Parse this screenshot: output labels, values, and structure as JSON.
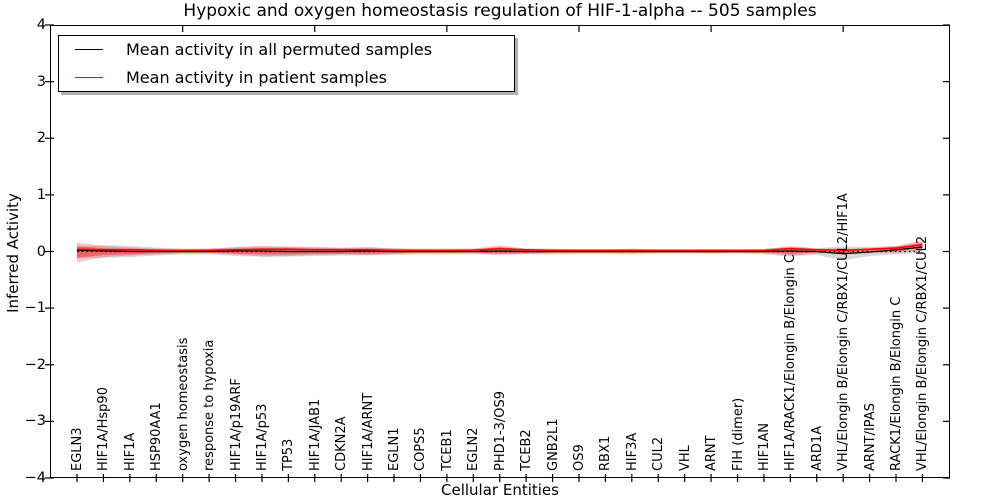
{
  "title": "Hypoxic and oxygen homeostasis regulation of HIF-1-alpha -- 505 samples",
  "axes": {
    "ylabel": "Inferred Activity",
    "xlabel": "Cellular Entities",
    "ytick_labels": [
      "4",
      "3",
      "2",
      "1",
      "0",
      "−1",
      "−2",
      "−3",
      "−4"
    ]
  },
  "legend": {
    "items": [
      {
        "label": "Mean activity in all permuted samples",
        "color": "#000000"
      },
      {
        "label": "Mean activity in patient samples",
        "color": "#ff0000"
      }
    ]
  },
  "chart_data": {
    "type": "line",
    "title": "Hypoxic and oxygen homeostasis regulation of HIF-1-alpha -- 505 samples",
    "xlabel": "Cellular Entities",
    "ylabel": "Inferred Activity",
    "ylim": [
      -4,
      4
    ],
    "yticks": [
      4,
      3,
      2,
      1,
      0,
      -1,
      -2,
      -3,
      -4
    ],
    "top_tick_indices": [
      4,
      9,
      14,
      19,
      24,
      29
    ],
    "grid": false,
    "legend_position": "upper left",
    "categories": [
      "EGLN3",
      "HIF1A/Hsp90",
      "HIF1A",
      "HSP90AA1",
      "oxygen homeostasis",
      "response to hypoxia",
      "HIF1A/p19ARF",
      "HIF1A/p53",
      "TP53",
      "HIF1A/JAB1",
      "CDKN2A",
      "HIF1A/ARNT",
      "EGLN1",
      "COPS5",
      "TCEB1",
      "EGLN2",
      "PHD1-3/OS9",
      "TCEB2",
      "GNB2L1",
      "OS9",
      "RBX1",
      "HIF3A",
      "CUL2",
      "VHL",
      "ARNT",
      "FIH (dimer)",
      "HIF1AN",
      "HIF1A/RACK1/Elongin B/Elongin C",
      "ARD1A",
      "VHL/Elongin B/Elongin C/RBX1/CUL2/HIF1A",
      "ARNT/IPAS",
      "RACK1/Elongin B/Elongin C",
      "VHL/Elongin B/Elongin C/RBX1/CUL2"
    ],
    "series": [
      {
        "name": "Mean activity in all permuted samples",
        "color": "#000000",
        "values": [
          0.02,
          0.01,
          0.0,
          0.0,
          0.0,
          0.0,
          0.01,
          0.01,
          0.0,
          0.0,
          0.0,
          0.01,
          0.0,
          0.0,
          0.0,
          0.0,
          0.01,
          0.0,
          0.0,
          0.0,
          0.0,
          0.0,
          0.0,
          0.0,
          0.0,
          0.0,
          0.0,
          0.01,
          0.0,
          -0.04,
          -0.01,
          0.03,
          0.08
        ]
      },
      {
        "name": "Mean activity in patient samples",
        "color": "#ff0000",
        "values": [
          0.04,
          0.03,
          0.03,
          0.02,
          0.02,
          0.02,
          0.03,
          0.04,
          0.04,
          0.03,
          0.03,
          0.03,
          0.02,
          0.02,
          0.02,
          0.02,
          0.05,
          0.03,
          0.02,
          0.02,
          0.02,
          0.02,
          0.02,
          0.02,
          0.02,
          0.02,
          0.02,
          0.05,
          0.03,
          0.02,
          0.04,
          0.06,
          0.12
        ]
      }
    ],
    "bands": [
      {
        "name": "permuted-activity-range",
        "color": "#999999",
        "opacity": 0.38,
        "upper": [
          0.1,
          0.11,
          0.1,
          0.07,
          0.05,
          0.05,
          0.08,
          0.09,
          0.09,
          0.08,
          0.07,
          0.07,
          0.06,
          0.05,
          0.05,
          0.05,
          0.05,
          0.05,
          0.05,
          0.04,
          0.04,
          0.05,
          0.04,
          0.04,
          0.04,
          0.04,
          0.05,
          0.08,
          0.06,
          0.09,
          0.08,
          0.09,
          0.14
        ],
        "lower": [
          -0.12,
          -0.11,
          -0.1,
          -0.07,
          -0.05,
          -0.05,
          -0.08,
          -0.09,
          -0.09,
          -0.08,
          -0.07,
          -0.07,
          -0.06,
          -0.05,
          -0.05,
          -0.05,
          -0.05,
          -0.05,
          -0.05,
          -0.04,
          -0.04,
          -0.05,
          -0.04,
          -0.04,
          -0.04,
          -0.04,
          -0.05,
          -0.09,
          -0.06,
          -0.16,
          -0.08,
          -0.05,
          -0.02
        ]
      },
      {
        "name": "patient-activity-range-outer",
        "color": "#ff0000",
        "opacity": 0.22,
        "upper": [
          0.16,
          0.1,
          0.07,
          0.05,
          0.04,
          0.05,
          0.07,
          0.1,
          0.08,
          0.07,
          0.06,
          0.08,
          0.05,
          0.04,
          0.04,
          0.05,
          0.11,
          0.05,
          0.04,
          0.04,
          0.04,
          0.04,
          0.03,
          0.03,
          0.04,
          0.03,
          0.04,
          0.1,
          0.05,
          0.05,
          0.06,
          0.1,
          0.2
        ],
        "lower": [
          -0.19,
          -0.1,
          -0.07,
          -0.05,
          -0.03,
          -0.03,
          -0.05,
          -0.09,
          -0.08,
          -0.06,
          -0.05,
          -0.06,
          -0.04,
          -0.03,
          -0.03,
          -0.03,
          -0.06,
          -0.04,
          -0.03,
          -0.03,
          -0.03,
          -0.03,
          -0.02,
          -0.02,
          -0.03,
          -0.02,
          -0.03,
          -0.07,
          -0.03,
          -0.05,
          -0.03,
          -0.02,
          0.02
        ]
      },
      {
        "name": "patient-activity-range-inner",
        "color": "#ff0000",
        "opacity": 0.38,
        "upper": [
          0.09,
          0.06,
          0.05,
          0.04,
          0.03,
          0.04,
          0.05,
          0.06,
          0.06,
          0.05,
          0.05,
          0.05,
          0.04,
          0.03,
          0.03,
          0.04,
          0.08,
          0.04,
          0.03,
          0.03,
          0.03,
          0.03,
          0.03,
          0.03,
          0.03,
          0.03,
          0.03,
          0.07,
          0.04,
          0.04,
          0.05,
          0.08,
          0.16
        ],
        "lower": [
          -0.11,
          -0.06,
          -0.05,
          -0.03,
          -0.02,
          -0.02,
          -0.04,
          -0.05,
          -0.05,
          -0.04,
          -0.04,
          -0.04,
          -0.03,
          -0.02,
          -0.02,
          -0.02,
          -0.03,
          -0.03,
          -0.02,
          -0.02,
          -0.02,
          -0.02,
          -0.02,
          -0.02,
          -0.02,
          -0.02,
          -0.02,
          -0.04,
          -0.02,
          -0.03,
          -0.01,
          0.0,
          0.06
        ]
      }
    ],
    "zero_line": {
      "y": 0,
      "style": "dotted",
      "color": "#000000"
    }
  }
}
